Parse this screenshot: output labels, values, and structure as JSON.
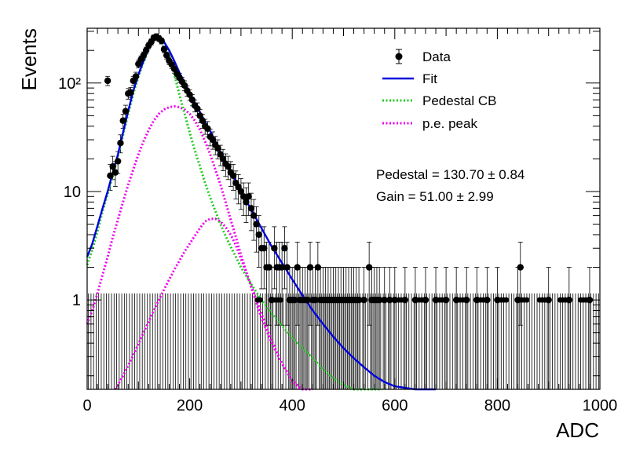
{
  "chart_data": {
    "type": "scatter",
    "xlabel": "ADC",
    "ylabel": "Events",
    "xlim": [
      0,
      1000
    ],
    "ylim": [
      0.15,
      320
    ],
    "yscale": "log",
    "grid": false,
    "legend_position": "top-right",
    "x_ticks": [
      "0",
      "200",
      "400",
      "600",
      "800",
      "1000"
    ],
    "y_ticks": [
      {
        "value": 1,
        "label": "1"
      },
      {
        "value": 10,
        "label": "10"
      },
      {
        "value": 100,
        "label": "10²"
      }
    ],
    "legend": [
      {
        "label": "Data",
        "style": "marker",
        "color": "#000000"
      },
      {
        "label": "Fit",
        "style": "solid",
        "color": "#0000dd"
      },
      {
        "label": "Pedestal CB",
        "style": "dotted",
        "color": "#22cc22"
      },
      {
        "label": "p.e. peak",
        "style": "dotted",
        "color": "#ee00ee"
      }
    ],
    "annotations": [
      {
        "text": "Pedestal = 130.70 ± 0.84"
      },
      {
        "text": "Gain = 51.00 ± 2.99"
      }
    ],
    "data_points": [
      [
        40,
        105
      ],
      [
        45,
        14
      ],
      [
        50,
        17
      ],
      [
        55,
        15
      ],
      [
        60,
        19
      ],
      [
        65,
        28
      ],
      [
        70,
        45
      ],
      [
        75,
        55
      ],
      [
        80,
        80
      ],
      [
        85,
        82
      ],
      [
        90,
        105
      ],
      [
        95,
        115
      ],
      [
        100,
        150
      ],
      [
        105,
        165
      ],
      [
        110,
        180
      ],
      [
        115,
        200
      ],
      [
        120,
        222
      ],
      [
        125,
        240
      ],
      [
        130,
        262
      ],
      [
        135,
        268
      ],
      [
        140,
        258
      ],
      [
        145,
        245
      ],
      [
        150,
        205
      ],
      [
        155,
        180
      ],
      [
        160,
        160
      ],
      [
        165,
        148
      ],
      [
        170,
        135
      ],
      [
        175,
        122
      ],
      [
        180,
        112
      ],
      [
        185,
        103
      ],
      [
        190,
        95
      ],
      [
        195,
        85
      ],
      [
        200,
        78
      ],
      [
        205,
        70
      ],
      [
        210,
        62
      ],
      [
        215,
        58
      ],
      [
        220,
        50
      ],
      [
        225,
        45
      ],
      [
        230,
        40
      ],
      [
        235,
        38
      ],
      [
        240,
        32
      ],
      [
        245,
        30
      ],
      [
        250,
        27
      ],
      [
        255,
        25
      ],
      [
        260,
        22
      ],
      [
        265,
        20
      ],
      [
        270,
        18
      ],
      [
        275,
        17
      ],
      [
        280,
        15
      ],
      [
        285,
        14
      ],
      [
        290,
        12
      ],
      [
        295,
        11
      ],
      [
        300,
        10
      ],
      [
        305,
        9
      ],
      [
        310,
        8
      ],
      [
        315,
        9
      ],
      [
        320,
        7
      ],
      [
        325,
        6
      ],
      [
        330,
        5
      ],
      [
        335,
        4
      ],
      [
        340,
        3
      ],
      [
        345,
        3
      ],
      [
        350,
        2
      ],
      [
        355,
        2
      ],
      [
        360,
        1
      ],
      [
        365,
        3
      ],
      [
        370,
        2
      ],
      [
        375,
        2
      ],
      [
        380,
        2
      ],
      [
        385,
        3
      ],
      [
        390,
        2
      ],
      [
        395,
        1
      ],
      [
        400,
        1
      ],
      [
        405,
        1
      ],
      [
        410,
        2
      ],
      [
        415,
        1
      ],
      [
        420,
        1
      ],
      [
        425,
        1
      ],
      [
        430,
        1
      ],
      [
        435,
        2
      ],
      [
        440,
        1
      ],
      [
        445,
        1
      ],
      [
        450,
        2
      ],
      [
        455,
        1
      ],
      [
        460,
        1
      ],
      [
        465,
        1
      ],
      [
        470,
        1
      ],
      [
        475,
        1
      ],
      [
        480,
        1
      ],
      [
        485,
        1
      ],
      [
        490,
        1
      ],
      [
        495,
        1
      ],
      [
        500,
        1
      ],
      [
        505,
        1
      ],
      [
        510,
        1
      ],
      [
        515,
        1
      ],
      [
        520,
        1
      ],
      [
        525,
        1
      ],
      [
        530,
        1
      ],
      [
        540,
        1
      ],
      [
        550,
        2
      ],
      [
        555,
        1
      ],
      [
        560,
        1
      ],
      [
        565,
        1
      ],
      [
        570,
        1
      ],
      [
        580,
        1
      ],
      [
        590,
        1
      ],
      [
        600,
        1
      ],
      [
        620,
        1
      ],
      [
        640,
        1
      ],
      [
        660,
        1
      ],
      [
        680,
        1
      ],
      [
        700,
        1
      ],
      [
        720,
        1
      ],
      [
        740,
        1
      ],
      [
        760,
        1
      ],
      [
        780,
        1
      ],
      [
        800,
        1
      ],
      [
        840,
        1
      ],
      [
        845,
        2
      ],
      [
        900,
        1
      ],
      [
        940,
        1
      ],
      [
        980,
        1
      ]
    ],
    "fit_curve": [
      [
        0,
        2.5
      ],
      [
        10,
        3.3
      ],
      [
        20,
        4.8
      ],
      [
        30,
        7
      ],
      [
        40,
        10
      ],
      [
        50,
        15
      ],
      [
        60,
        22
      ],
      [
        70,
        35
      ],
      [
        80,
        55
      ],
      [
        90,
        85
      ],
      [
        100,
        120
      ],
      [
        110,
        160
      ],
      [
        120,
        210
      ],
      [
        130,
        250
      ],
      [
        140,
        262
      ],
      [
        150,
        240
      ],
      [
        160,
        200
      ],
      [
        170,
        160
      ],
      [
        180,
        125
      ],
      [
        190,
        100
      ],
      [
        200,
        82
      ],
      [
        210,
        66
      ],
      [
        220,
        54
      ],
      [
        230,
        44
      ],
      [
        240,
        36
      ],
      [
        250,
        29
      ],
      [
        260,
        23
      ],
      [
        270,
        19
      ],
      [
        280,
        15.5
      ],
      [
        290,
        12.5
      ],
      [
        300,
        10
      ],
      [
        320,
        6.8
      ],
      [
        340,
        4.6
      ],
      [
        360,
        3.1
      ],
      [
        380,
        2.2
      ],
      [
        400,
        1.55
      ],
      [
        420,
        1.1
      ],
      [
        440,
        0.8
      ],
      [
        460,
        0.6
      ],
      [
        480,
        0.46
      ],
      [
        500,
        0.36
      ],
      [
        520,
        0.29
      ],
      [
        540,
        0.24
      ],
      [
        560,
        0.2
      ],
      [
        580,
        0.175
      ],
      [
        600,
        0.16
      ],
      [
        640,
        0.15
      ],
      [
        680,
        0.15
      ]
    ],
    "pedestal_cb_curve": [
      [
        0,
        2.1
      ],
      [
        10,
        2.9
      ],
      [
        20,
        4.3
      ],
      [
        30,
        6.5
      ],
      [
        40,
        9.5
      ],
      [
        50,
        14
      ],
      [
        60,
        21
      ],
      [
        70,
        33
      ],
      [
        80,
        52
      ],
      [
        90,
        80
      ],
      [
        100,
        115
      ],
      [
        110,
        155
      ],
      [
        120,
        205
      ],
      [
        130,
        245
      ],
      [
        140,
        262
      ],
      [
        150,
        235
      ],
      [
        160,
        180
      ],
      [
        170,
        120
      ],
      [
        180,
        78
      ],
      [
        190,
        52
      ],
      [
        200,
        35
      ],
      [
        210,
        24
      ],
      [
        220,
        17
      ],
      [
        230,
        12
      ],
      [
        240,
        8.8
      ],
      [
        250,
        6.6
      ],
      [
        260,
        5
      ],
      [
        270,
        3.9
      ],
      [
        280,
        3.1
      ],
      [
        290,
        2.5
      ],
      [
        300,
        2
      ],
      [
        320,
        1.4
      ],
      [
        340,
        1
      ],
      [
        360,
        0.75
      ],
      [
        380,
        0.58
      ],
      [
        400,
        0.45
      ],
      [
        420,
        0.36
      ],
      [
        440,
        0.29
      ],
      [
        460,
        0.23
      ],
      [
        480,
        0.19
      ],
      [
        500,
        0.165
      ],
      [
        520,
        0.15
      ],
      [
        540,
        0.15
      ],
      [
        560,
        0.15
      ],
      [
        575,
        0.15
      ]
    ],
    "pe_peak_curves": [
      [
        [
          0,
          0.6
        ],
        [
          10,
          0.8
        ],
        [
          20,
          1.15
        ],
        [
          30,
          1.7
        ],
        [
          40,
          2.5
        ],
        [
          50,
          3.8
        ],
        [
          60,
          5.5
        ],
        [
          70,
          8
        ],
        [
          80,
          11.5
        ],
        [
          90,
          16
        ],
        [
          100,
          22
        ],
        [
          110,
          29
        ],
        [
          120,
          37
        ],
        [
          130,
          45
        ],
        [
          140,
          52
        ],
        [
          150,
          57
        ],
        [
          160,
          60
        ],
        [
          170,
          61
        ],
        [
          180,
          60
        ],
        [
          190,
          57
        ],
        [
          200,
          52
        ],
        [
          210,
          45
        ],
        [
          220,
          37
        ],
        [
          230,
          29
        ],
        [
          240,
          22
        ],
        [
          250,
          16
        ],
        [
          260,
          11.5
        ],
        [
          270,
          8
        ],
        [
          280,
          5.5
        ],
        [
          290,
          3.8
        ],
        [
          300,
          2.6
        ],
        [
          320,
          1.3
        ],
        [
          340,
          0.68
        ],
        [
          360,
          0.4
        ],
        [
          380,
          0.26
        ],
        [
          400,
          0.18
        ],
        [
          415,
          0.15
        ]
      ],
      [
        [
          55,
          0.15
        ],
        [
          70,
          0.2
        ],
        [
          90,
          0.31
        ],
        [
          110,
          0.5
        ],
        [
          130,
          0.8
        ],
        [
          150,
          1.25
        ],
        [
          170,
          1.9
        ],
        [
          190,
          2.8
        ],
        [
          210,
          3.9
        ],
        [
          220,
          4.6
        ],
        [
          230,
          5.3
        ],
        [
          240,
          5.6
        ],
        [
          250,
          5.6
        ],
        [
          260,
          5.3
        ],
        [
          270,
          4.7
        ],
        [
          280,
          4
        ],
        [
          290,
          3.2
        ],
        [
          300,
          2.4
        ],
        [
          320,
          1.35
        ],
        [
          340,
          0.75
        ],
        [
          360,
          0.42
        ],
        [
          380,
          0.26
        ],
        [
          400,
          0.18
        ],
        [
          420,
          0.15
        ],
        [
          440,
          0.15
        ]
      ]
    ],
    "colors": {
      "data": "#000000",
      "fit": "#0000dd",
      "pedestal": "#22cc22",
      "pe_peak": "#ee00ee"
    }
  }
}
